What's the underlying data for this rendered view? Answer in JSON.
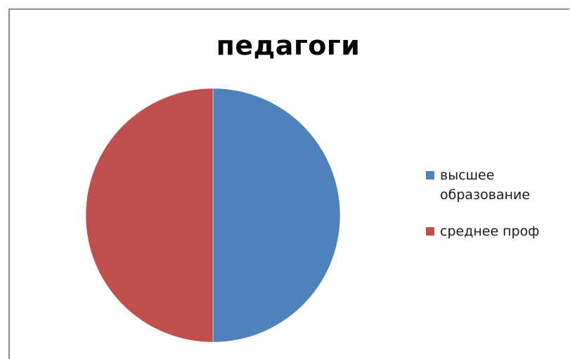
{
  "chart_data": {
    "type": "pie",
    "title": "педагоги",
    "categories": [
      "высшее образование",
      "среднее проф"
    ],
    "values": [
      50,
      50
    ],
    "colors": [
      "#4f81bd",
      "#c0504d"
    ],
    "legend_position": "right"
  }
}
